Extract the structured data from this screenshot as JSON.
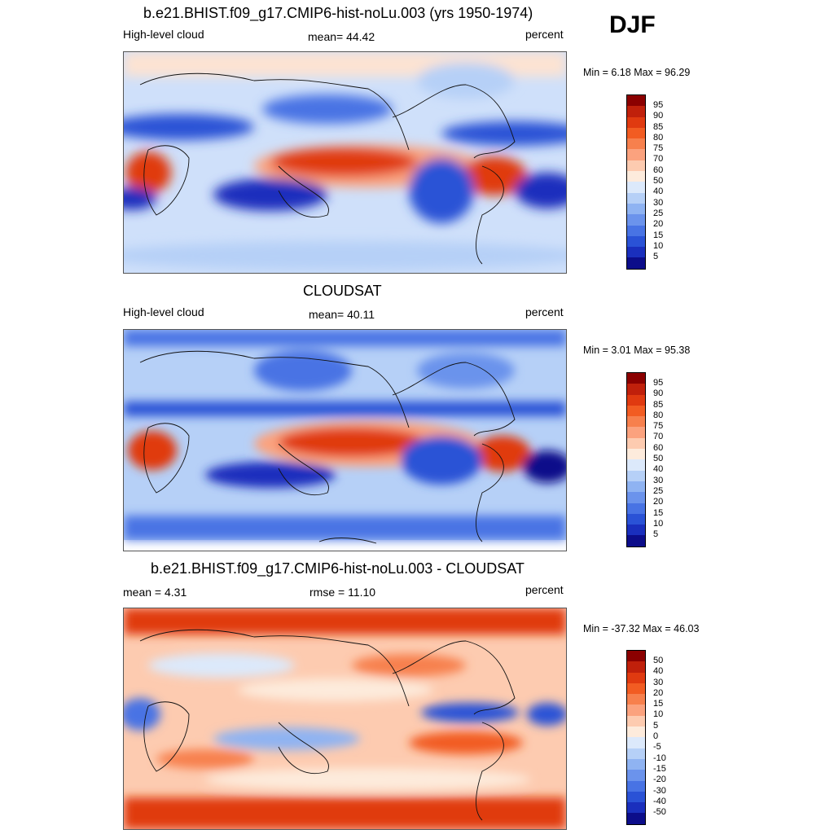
{
  "season": "DJF",
  "panels": [
    {
      "title": "b.e21.BHIST.f09_g17.CMIP6-hist-noLu.003 (yrs 1950-1974)",
      "left_label": "High-level cloud",
      "center_label": "mean=  44.42",
      "right_label": "percent",
      "minmax": "Min =   6.18 Max =  96.29",
      "colorbar": {
        "labels": [
          "95",
          "90",
          "85",
          "80",
          "75",
          "70",
          "60",
          "50",
          "40",
          "30",
          "25",
          "20",
          "15",
          "10",
          "5"
        ],
        "colors": [
          "#8b0000",
          "#c0200b",
          "#e03a10",
          "#f25c22",
          "#f7804d",
          "#fba27e",
          "#fdcbb0",
          "#fdebdc",
          "#dce9fb",
          "#b6d0f7",
          "#8fb3f2",
          "#6b93ec",
          "#4873e4",
          "#2a52d6",
          "#1a2fbd",
          "#0c0d8a"
        ]
      }
    },
    {
      "title": "CLOUDSAT",
      "left_label": "High-level cloud",
      "center_label": "mean=  40.11",
      "right_label": "percent",
      "minmax": "Min =   3.01 Max =  95.38",
      "colorbar": {
        "labels": [
          "95",
          "90",
          "85",
          "80",
          "75",
          "70",
          "60",
          "50",
          "40",
          "30",
          "25",
          "20",
          "15",
          "10",
          "5"
        ],
        "colors": [
          "#8b0000",
          "#c0200b",
          "#e03a10",
          "#f25c22",
          "#f7804d",
          "#fba27e",
          "#fdcbb0",
          "#fdebdc",
          "#dce9fb",
          "#b6d0f7",
          "#8fb3f2",
          "#6b93ec",
          "#4873e4",
          "#2a52d6",
          "#1a2fbd",
          "#0c0d8a"
        ]
      }
    },
    {
      "title": "b.e21.BHIST.f09_g17.CMIP6-hist-noLu.003 - CLOUDSAT",
      "left_label": "mean =   4.31",
      "center_label": "rmse =  11.10",
      "right_label": "percent",
      "minmax": "Min = -37.32 Max =  46.03",
      "colorbar": {
        "labels": [
          "50",
          "40",
          "30",
          "20",
          "15",
          "10",
          "5",
          "0",
          "-5",
          "-10",
          "-15",
          "-20",
          "-30",
          "-40",
          "-50"
        ],
        "colors": [
          "#8b0000",
          "#c0200b",
          "#e03a10",
          "#f25c22",
          "#f7804d",
          "#fba27e",
          "#fdcbb0",
          "#fdebdc",
          "#dce9fb",
          "#b6d0f7",
          "#8fb3f2",
          "#6b93ec",
          "#4873e4",
          "#2a52d6",
          "#1a2fbd",
          "#0c0d8a"
        ]
      }
    }
  ]
}
